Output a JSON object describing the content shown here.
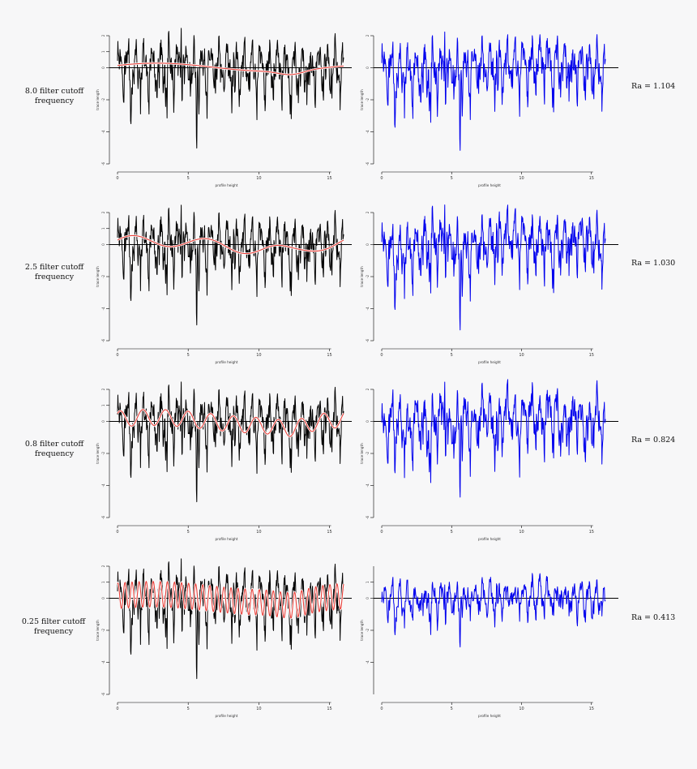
{
  "chart_data": {
    "type": "line",
    "description_axis": {
      "xlabel": "profile height",
      "ylabel": "trace length",
      "xticks": [
        0,
        5,
        10,
        15
      ],
      "xlim": [
        0,
        16
      ]
    },
    "rows": [
      {
        "label_line1": "8.0 filter cutoff",
        "label_line2": "frequency",
        "ra_text": "Ra = 1.104",
        "raw_yticks": [
          -6,
          -4,
          -2,
          0,
          1,
          2
        ],
        "res_yticks": [
          -6,
          -4,
          -2,
          0,
          2
        ],
        "raw_ylim": [
          -6,
          2
        ],
        "res_ylim": [
          -6,
          2
        ],
        "filter_cycles": 0.6,
        "filter_amp": 0.2,
        "residual_scale": 1.0
      },
      {
        "label_line1": "2.5 filter cutoff",
        "label_line2": "frequency",
        "ra_text": "Ra = 1.030",
        "raw_yticks": [
          -6,
          -4,
          -2,
          0,
          1,
          2
        ],
        "res_yticks": [
          -6,
          -4,
          -2,
          0,
          2
        ],
        "raw_ylim": [
          -6,
          2
        ],
        "res_ylim": [
          -6,
          2
        ],
        "filter_cycles": 3,
        "filter_amp": 0.35,
        "residual_scale": 1.0
      },
      {
        "label_line1": "0.8 filter cutoff",
        "label_line2": "frequency",
        "ra_text": "Ra = 0.824",
        "raw_yticks": [
          -6,
          -4,
          -2,
          0,
          1,
          2
        ],
        "res_yticks": [
          -6,
          -4,
          -2,
          0,
          2
        ],
        "raw_ylim": [
          -6,
          2
        ],
        "res_ylim": [
          -6,
          2
        ],
        "filter_cycles": 10,
        "filter_amp": 0.5,
        "residual_scale": 1.0
      },
      {
        "label_line1": "0.25 filter cutoff",
        "label_line2": "frequency",
        "ra_text": "Ra = 0.413",
        "raw_yticks": [
          -6,
          -4,
          -2,
          0,
          1,
          2
        ],
        "res_yticks": [
          -4,
          -2,
          0,
          1
        ],
        "raw_ylim": [
          -6,
          2
        ],
        "res_ylim": [
          -6,
          2
        ],
        "filter_cycles": 32,
        "filter_amp": 0.8,
        "residual_scale": 0.55
      }
    ],
    "colors": {
      "raw": "#000000",
      "filter": "#e8403a",
      "filter_halo": "#ffffff",
      "residual": "#0000ee",
      "zero_line": "#000000"
    }
  }
}
